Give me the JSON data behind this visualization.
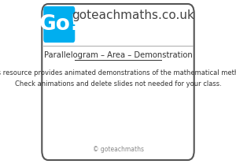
{
  "bg_color": "#ffffff",
  "border_color": "#555555",
  "logo_bg": "#00aeef",
  "logo_text": "Go!",
  "logo_text_color": "#ffffff",
  "site_title": "goteachmaths.co.uk",
  "site_title_color": "#444444",
  "slide_title": "Parallelogram – Area – Demonstration",
  "slide_title_color": "#333333",
  "body_line1": "This resource provides animated demonstrations of the mathematical method.",
  "body_line2": "Check animations and delete slides not needed for your class.",
  "body_color": "#333333",
  "footer": "© goteachmaths",
  "footer_color": "#888888"
}
